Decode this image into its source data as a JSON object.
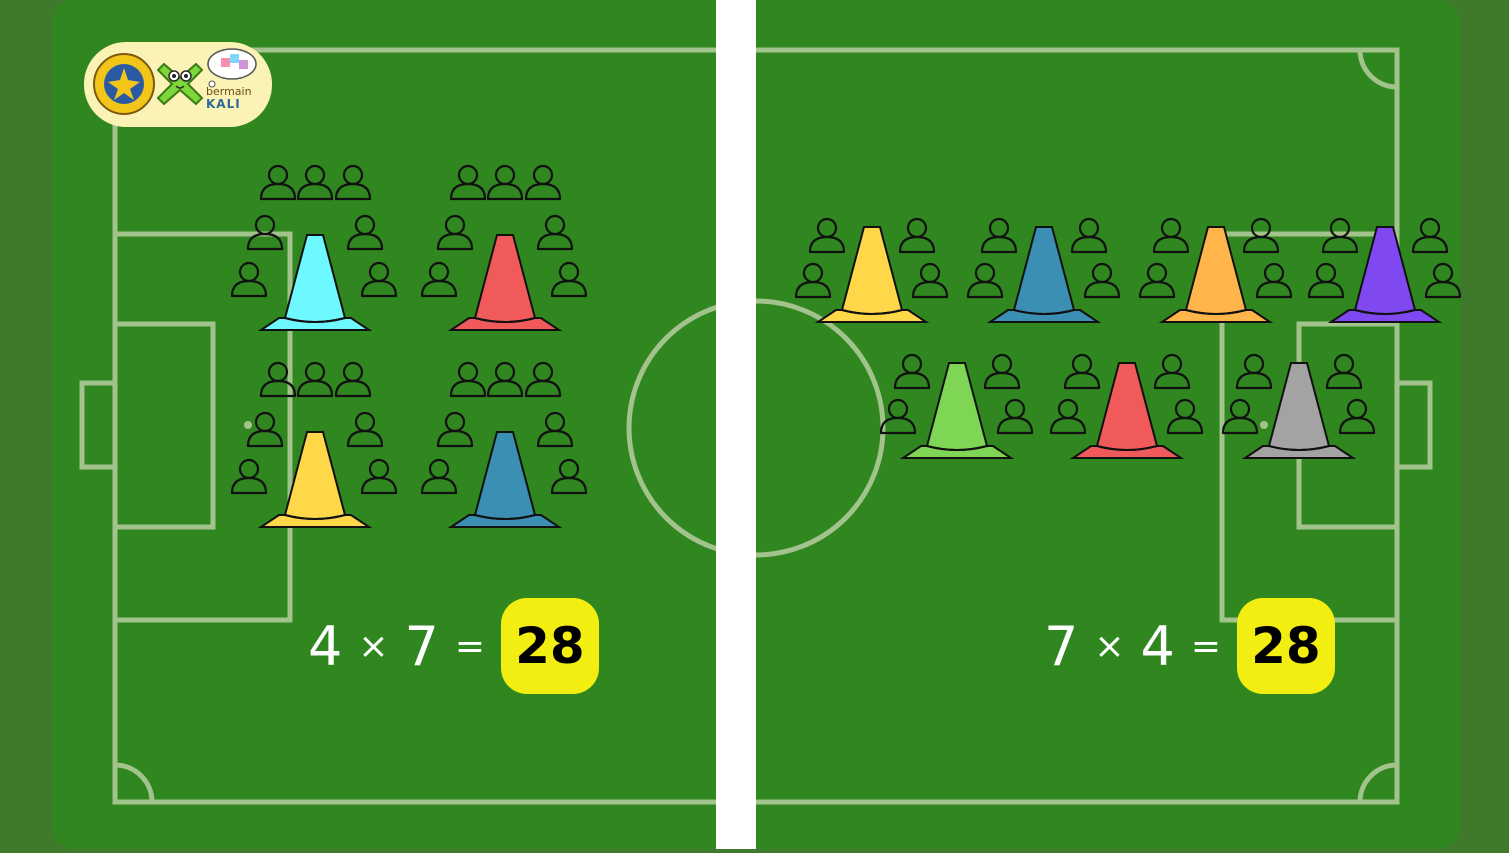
{
  "colors": {
    "field": "#30861f",
    "border": "#3f7a2c",
    "lines": "#a3c38c",
    "divider": "#ffffff",
    "answer_bg": "#f3ee12"
  },
  "logo": {
    "word1": "bermain",
    "word2": "KALI"
  },
  "left_panel": {
    "equation": {
      "a": "4",
      "times": "×",
      "b": "7",
      "equals": "=",
      "answer": "28"
    },
    "groups": [
      {
        "cone_color": "#6ef8ff",
        "people": 7
      },
      {
        "cone_color": "#f15a5a",
        "people": 7
      },
      {
        "cone_color": "#ffd84a",
        "people": 7
      },
      {
        "cone_color": "#3a8fb2",
        "people": 7
      }
    ]
  },
  "right_panel": {
    "equation": {
      "a": "7",
      "times": "×",
      "b": "4",
      "equals": "=",
      "answer": "28"
    },
    "groups": [
      {
        "cone_color": "#ffd84a",
        "people": 4
      },
      {
        "cone_color": "#3a8fb2",
        "people": 4
      },
      {
        "cone_color": "#ffb54a",
        "people": 4
      },
      {
        "cone_color": "#7f48f0",
        "people": 4
      },
      {
        "cone_color": "#7ed654",
        "people": 4
      },
      {
        "cone_color": "#f15a5a",
        "people": 4
      },
      {
        "cone_color": "#a3a3a3",
        "people": 4
      }
    ]
  }
}
